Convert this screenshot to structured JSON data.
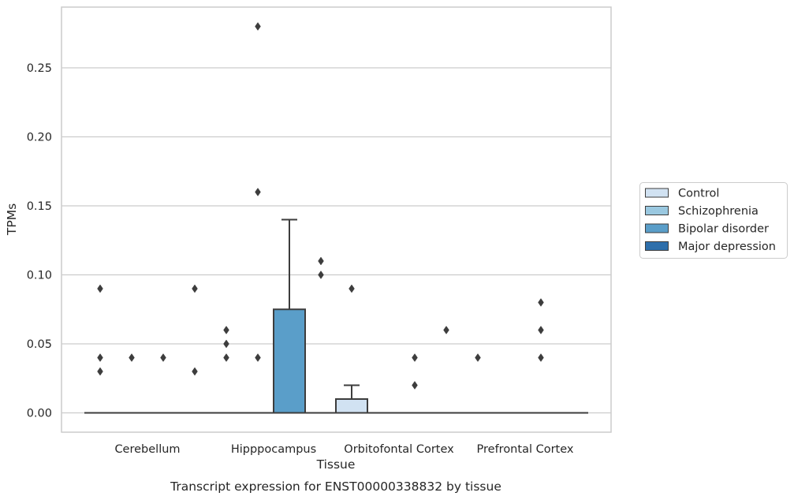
{
  "chart_data": {
    "type": "box",
    "title": "",
    "caption": "Transcript expression for ENST00000338832 by tissue",
    "xlabel": "Tissue",
    "ylabel": "TPMs",
    "ylim": [
      -0.014,
      0.294
    ],
    "yticks": [
      0.0,
      0.05,
      0.1,
      0.15,
      0.2,
      0.25
    ],
    "ytick_labels": [
      "0.00",
      "0.05",
      "0.10",
      "0.15",
      "0.20",
      "0.25"
    ],
    "grid": true,
    "legend_position": "right",
    "categories": [
      "Cerebellum",
      "Hipppocampus",
      "Orbitofontal Cortex",
      "Prefrontal Cortex"
    ],
    "series": [
      {
        "name": "Control",
        "color": "#d1e2f2",
        "boxes": [
          {
            "category": "Cerebellum",
            "q1": 0,
            "median": 0,
            "q3": 0,
            "whisker_low": 0,
            "whisker_high": 0,
            "outliers": [
              0.03,
              0.04,
              0.09
            ]
          },
          {
            "category": "Hipppocampus",
            "q1": 0,
            "median": 0,
            "q3": 0,
            "whisker_low": 0,
            "whisker_high": 0,
            "outliers": [
              0.04,
              0.05,
              0.06
            ]
          },
          {
            "category": "Orbitofontal Cortex",
            "q1": 0,
            "median": 0,
            "q3": 0.01,
            "whisker_low": 0,
            "whisker_high": 0.02,
            "outliers": [
              0.09
            ]
          },
          {
            "category": "Prefrontal Cortex",
            "q1": 0,
            "median": 0,
            "q3": 0,
            "whisker_low": 0,
            "whisker_high": 0,
            "outliers": [
              0.04
            ]
          }
        ]
      },
      {
        "name": "Schizophrenia",
        "color": "#9ac8e0",
        "boxes": [
          {
            "category": "Cerebellum",
            "q1": 0,
            "median": 0,
            "q3": 0,
            "whisker_low": 0,
            "whisker_high": 0,
            "outliers": [
              0.04
            ]
          },
          {
            "category": "Hipppocampus",
            "q1": 0,
            "median": 0,
            "q3": 0,
            "whisker_low": 0,
            "whisker_high": 0,
            "outliers": [
              0.04,
              0.16,
              0.28
            ]
          },
          {
            "category": "Orbitofontal Cortex",
            "q1": 0,
            "median": 0,
            "q3": 0,
            "whisker_low": 0,
            "whisker_high": 0,
            "outliers": []
          },
          {
            "category": "Prefrontal Cortex",
            "q1": 0,
            "median": 0,
            "q3": 0,
            "whisker_low": 0,
            "whisker_high": 0,
            "outliers": []
          }
        ]
      },
      {
        "name": "Bipolar disorder",
        "color": "#5a9ec9",
        "boxes": [
          {
            "category": "Cerebellum",
            "q1": 0,
            "median": 0,
            "q3": 0,
            "whisker_low": 0,
            "whisker_high": 0,
            "outliers": [
              0.04
            ]
          },
          {
            "category": "Hipppocampus",
            "q1": 0,
            "median": 0,
            "q3": 0.075,
            "whisker_low": 0,
            "whisker_high": 0.14,
            "outliers": []
          },
          {
            "category": "Orbitofontal Cortex",
            "q1": 0,
            "median": 0,
            "q3": 0,
            "whisker_low": 0,
            "whisker_high": 0,
            "outliers": [
              0.02,
              0.04
            ]
          },
          {
            "category": "Prefrontal Cortex",
            "q1": 0,
            "median": 0,
            "q3": 0,
            "whisker_low": 0,
            "whisker_high": 0,
            "outliers": [
              0.04,
              0.06,
              0.08
            ]
          }
        ]
      },
      {
        "name": "Major depression",
        "color": "#2e6fab",
        "boxes": [
          {
            "category": "Cerebellum",
            "q1": 0,
            "median": 0,
            "q3": 0,
            "whisker_low": 0,
            "whisker_high": 0,
            "outliers": [
              0.03,
              0.09
            ]
          },
          {
            "category": "Hipppocampus",
            "q1": 0,
            "median": 0,
            "q3": 0,
            "whisker_low": 0,
            "whisker_high": 0,
            "outliers": [
              0.1,
              0.11
            ]
          },
          {
            "category": "Orbitofontal Cortex",
            "q1": 0,
            "median": 0,
            "q3": 0,
            "whisker_low": 0,
            "whisker_high": 0,
            "outliers": [
              0.06
            ]
          },
          {
            "category": "Prefrontal Cortex",
            "q1": 0,
            "median": 0,
            "q3": 0,
            "whisker_low": 0,
            "whisker_high": 0,
            "outliers": []
          }
        ]
      }
    ]
  },
  "style": {
    "grid_color": "#cccccc",
    "frame_color": "#cccccc",
    "line_color": "#3d3d3d",
    "legend_border": "#cccccc"
  }
}
